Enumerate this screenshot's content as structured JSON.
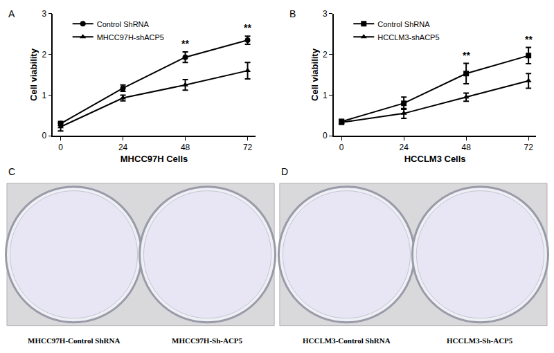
{
  "chart_data": [
    {
      "type": "line",
      "panel": "A",
      "xlabel": "MHCC97H Cells",
      "ylabel": "Cell viability",
      "x": [
        0,
        24,
        48,
        72
      ],
      "series": [
        {
          "name": "Control ShRNA",
          "color": "#000000",
          "marker": "circle",
          "values": [
            0.3,
            1.17,
            1.93,
            2.35
          ],
          "errors": [
            0.05,
            0.08,
            0.13,
            0.1
          ]
        },
        {
          "name": "MHCC97H-shACP5",
          "color": "#000000",
          "marker": "triangle-up",
          "values": [
            0.22,
            0.93,
            1.25,
            1.6
          ],
          "errors": [
            0.1,
            0.07,
            0.13,
            0.2
          ]
        }
      ],
      "annotations": [
        {
          "x": 48,
          "text": "**"
        },
        {
          "x": 72,
          "text": "**"
        }
      ],
      "xlim": [
        -3,
        75
      ],
      "xticks": [
        0,
        24,
        48,
        72
      ],
      "ylim": [
        0,
        3
      ],
      "yticks": [
        0,
        1,
        2,
        3
      ],
      "legend": "upper left",
      "grid": false
    },
    {
      "type": "line",
      "panel": "B",
      "xlabel": "HCCLM3 Cells",
      "ylabel": "Cell viability",
      "x": [
        0,
        24,
        48,
        72
      ],
      "series": [
        {
          "name": "Control ShRNA",
          "color": "#000000",
          "marker": "square",
          "values": [
            0.35,
            0.8,
            1.53,
            1.97
          ],
          "errors": [
            0.05,
            0.15,
            0.25,
            0.2
          ]
        },
        {
          "name": "HCCLM3-shACP5",
          "color": "#000000",
          "marker": "triangle-up",
          "values": [
            0.33,
            0.55,
            0.95,
            1.35
          ],
          "errors": [
            0.05,
            0.12,
            0.1,
            0.18
          ]
        }
      ],
      "annotations": [
        {
          "x": 48,
          "text": "**"
        },
        {
          "x": 72,
          "text": "**"
        }
      ],
      "xlim": [
        -3,
        75
      ],
      "xticks": [
        0,
        24,
        48,
        72
      ],
      "ylim": [
        0,
        3
      ],
      "yticks": [
        0,
        1,
        2,
        3
      ],
      "legend": "upper left",
      "grid": false
    }
  ],
  "image_panels": [
    {
      "panel": "C",
      "labels": [
        "MHCC97H-Control ShRNA",
        "MHCC97H-Sh-ACP5"
      ]
    },
    {
      "panel": "D",
      "labels": [
        "HCCLM3-Control ShRNA",
        "HCCLM3-Sh-ACP5"
      ]
    }
  ]
}
